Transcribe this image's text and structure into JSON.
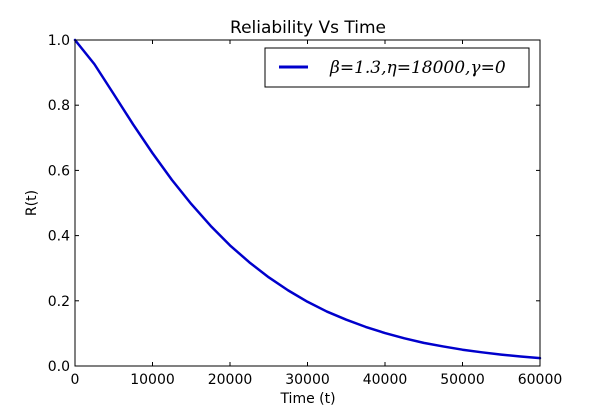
{
  "chart_data": {
    "type": "line",
    "title": "Reliability Vs Time",
    "xlabel": "Time (t)",
    "ylabel": "R(t)",
    "xlim": [
      0,
      60000
    ],
    "ylim": [
      0.0,
      1.0
    ],
    "xticks": [
      0,
      10000,
      20000,
      30000,
      40000,
      50000,
      60000
    ],
    "xtick_labels": [
      "0",
      "10000",
      "20000",
      "30000",
      "40000",
      "50000",
      "60000"
    ],
    "yticks": [
      0.0,
      0.2,
      0.4,
      0.6,
      0.8,
      1.0
    ],
    "ytick_labels": [
      "0.0",
      "0.2",
      "0.4",
      "0.6",
      "0.8",
      "1.0"
    ],
    "grid": false,
    "legend_position": "top-right",
    "series": [
      {
        "name": "β=1.3,η=18000,γ=0",
        "color": "#0000cc",
        "x": [
          0,
          2500,
          5000,
          7500,
          10000,
          12500,
          15000,
          17500,
          20000,
          22500,
          25000,
          27500,
          30000,
          32500,
          35000,
          37500,
          40000,
          42500,
          45000,
          47500,
          50000,
          52500,
          55000,
          57500,
          60000
        ],
        "y": [
          1.0,
          0.926,
          0.834,
          0.741,
          0.653,
          0.571,
          0.497,
          0.43,
          0.37,
          0.318,
          0.272,
          0.232,
          0.197,
          0.167,
          0.142,
          0.12,
          0.101,
          0.085,
          0.071,
          0.06,
          0.05,
          0.042,
          0.035,
          0.029,
          0.024
        ]
      }
    ]
  }
}
